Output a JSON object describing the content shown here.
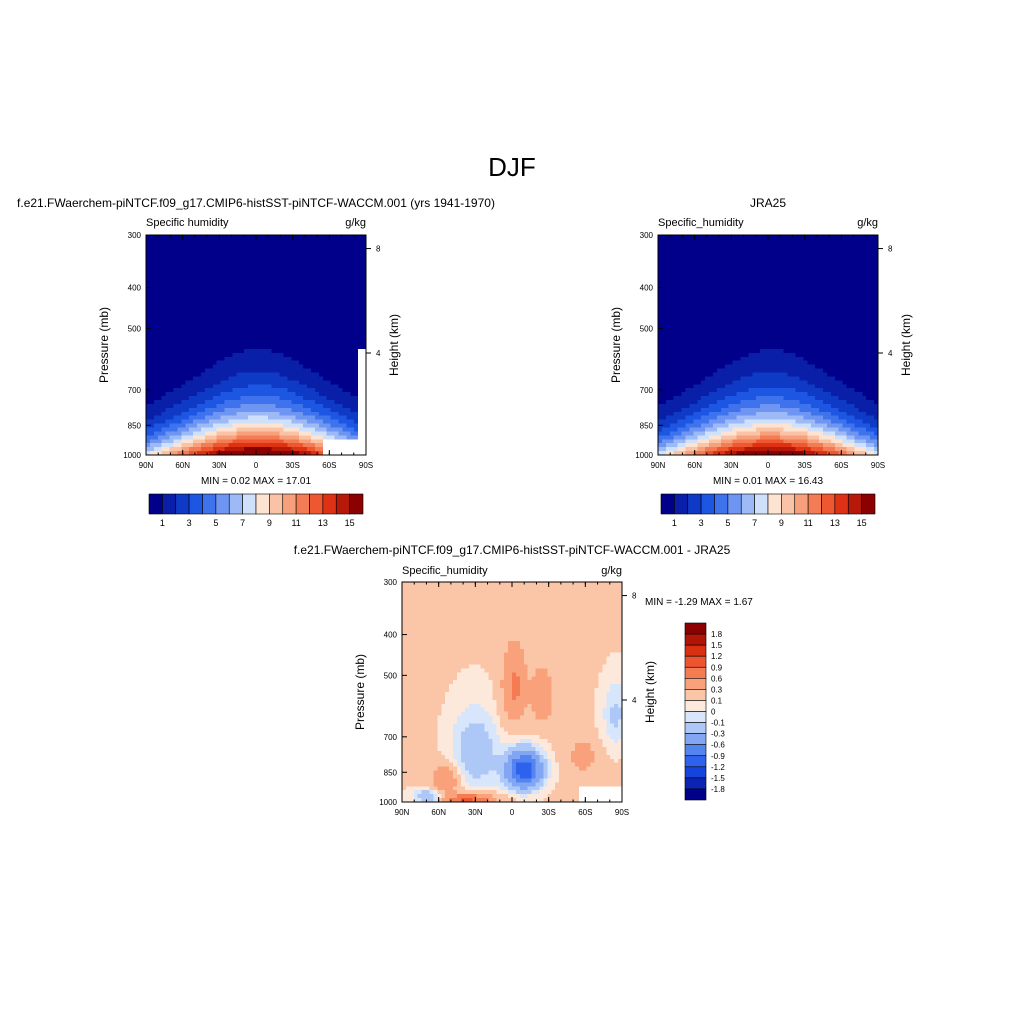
{
  "figure_title": "DJF",
  "colors": {
    "seq_scale": [
      "#00008b",
      "#0a1fa8",
      "#0e3ac6",
      "#1d56e2",
      "#3f73ee",
      "#6e95f2",
      "#9ebaf6",
      "#cfe0fa",
      "#fde3d2",
      "#fbc3a6",
      "#f8a07c",
      "#f47c55",
      "#ef5731",
      "#dd3214",
      "#b71909",
      "#8b0000"
    ],
    "diff_scale": [
      "#00008b",
      "#0b24b5",
      "#1544dc",
      "#2e62ee",
      "#5484f0",
      "#82a6f3",
      "#adc8f7",
      "#d8e6fb",
      "#fde9dc",
      "#fbc6a8",
      "#f8a17b",
      "#f47b52",
      "#ee552f",
      "#d9300f",
      "#b01505",
      "#8b0000"
    ],
    "missing": "#ffffff"
  },
  "chart_data": [
    {
      "type": "heatmap",
      "title": "f.e21.FWaerchem-piNTCF.f09_g17.CMIP6-histSST-piNTCF-WACCM.001 (yrs 1941-1970)",
      "left_string": "Specific humidity",
      "right_string": "g/kg",
      "ylabel": "Pressure (mb)",
      "y2label": "Height (km)",
      "x_ticks": [
        "90N",
        "60N",
        "30N",
        "0",
        "30S",
        "60S",
        "90S"
      ],
      "y_ticks": [
        "300",
        "400",
        "500",
        "700",
        "850",
        "1000"
      ],
      "y2_ticks": [
        "8",
        "4"
      ],
      "xlim": [
        90,
        -90
      ],
      "ylim": [
        1000,
        300
      ],
      "y_scale": "log",
      "min_label": "MIN =   0.02  MAX =  17.01",
      "min": 0.02,
      "max": 17.01,
      "peak_lat": -2,
      "colorbar_labels": [
        "1",
        "3",
        "5",
        "7",
        "9",
        "11",
        "13",
        "15"
      ],
      "colorbar_orientation": "horizontal",
      "missing_region": "south high-latitude surface"
    },
    {
      "type": "heatmap",
      "title": "JRA25",
      "left_string": "Specific_humidity",
      "right_string": "g/kg",
      "ylabel": "Pressure (mb)",
      "y2label": "Height (km)",
      "x_ticks": [
        "90N",
        "60N",
        "30N",
        "0",
        "30S",
        "60S",
        "90S"
      ],
      "y_ticks": [
        "300",
        "400",
        "500",
        "700",
        "850",
        "1000"
      ],
      "y2_ticks": [
        "8",
        "4"
      ],
      "xlim": [
        90,
        -90
      ],
      "ylim": [
        1000,
        300
      ],
      "y_scale": "log",
      "min_label": "MIN =   0.01  MAX =  16.43",
      "min": 0.01,
      "max": 16.43,
      "peak_lat": -2,
      "colorbar_labels": [
        "1",
        "3",
        "5",
        "7",
        "9",
        "11",
        "13",
        "15"
      ],
      "colorbar_orientation": "horizontal"
    },
    {
      "type": "heatmap",
      "title": "f.e21.FWaerchem-piNTCF.f09_g17.CMIP6-histSST-piNTCF-WACCM.001 - JRA25",
      "left_string": "Specific_humidity",
      "right_string": "g/kg",
      "ylabel": "Pressure (mb)",
      "y2label": "Height (km)",
      "x_ticks": [
        "90N",
        "60N",
        "30N",
        "0",
        "30S",
        "60S",
        "90S"
      ],
      "y_ticks": [
        "300",
        "400",
        "500",
        "700",
        "850",
        "1000"
      ],
      "y2_ticks": [
        "8",
        "4"
      ],
      "xlim": [
        90,
        -90
      ],
      "ylim": [
        1000,
        300
      ],
      "y_scale": "log",
      "min_label": "MIN =  -1.29  MAX =   1.67",
      "min": -1.29,
      "max": 1.67,
      "colorbar_labels": [
        "1.8",
        "1.5",
        "1.2",
        "0.9",
        "0.6",
        "0.3",
        "0.1",
        "0",
        "-0.1",
        "-0.3",
        "-0.6",
        "-0.9",
        "-1.2",
        "-1.5",
        "-1.8"
      ],
      "colorbar_orientation": "vertical",
      "missing_region": "south high-latitude surface"
    }
  ]
}
